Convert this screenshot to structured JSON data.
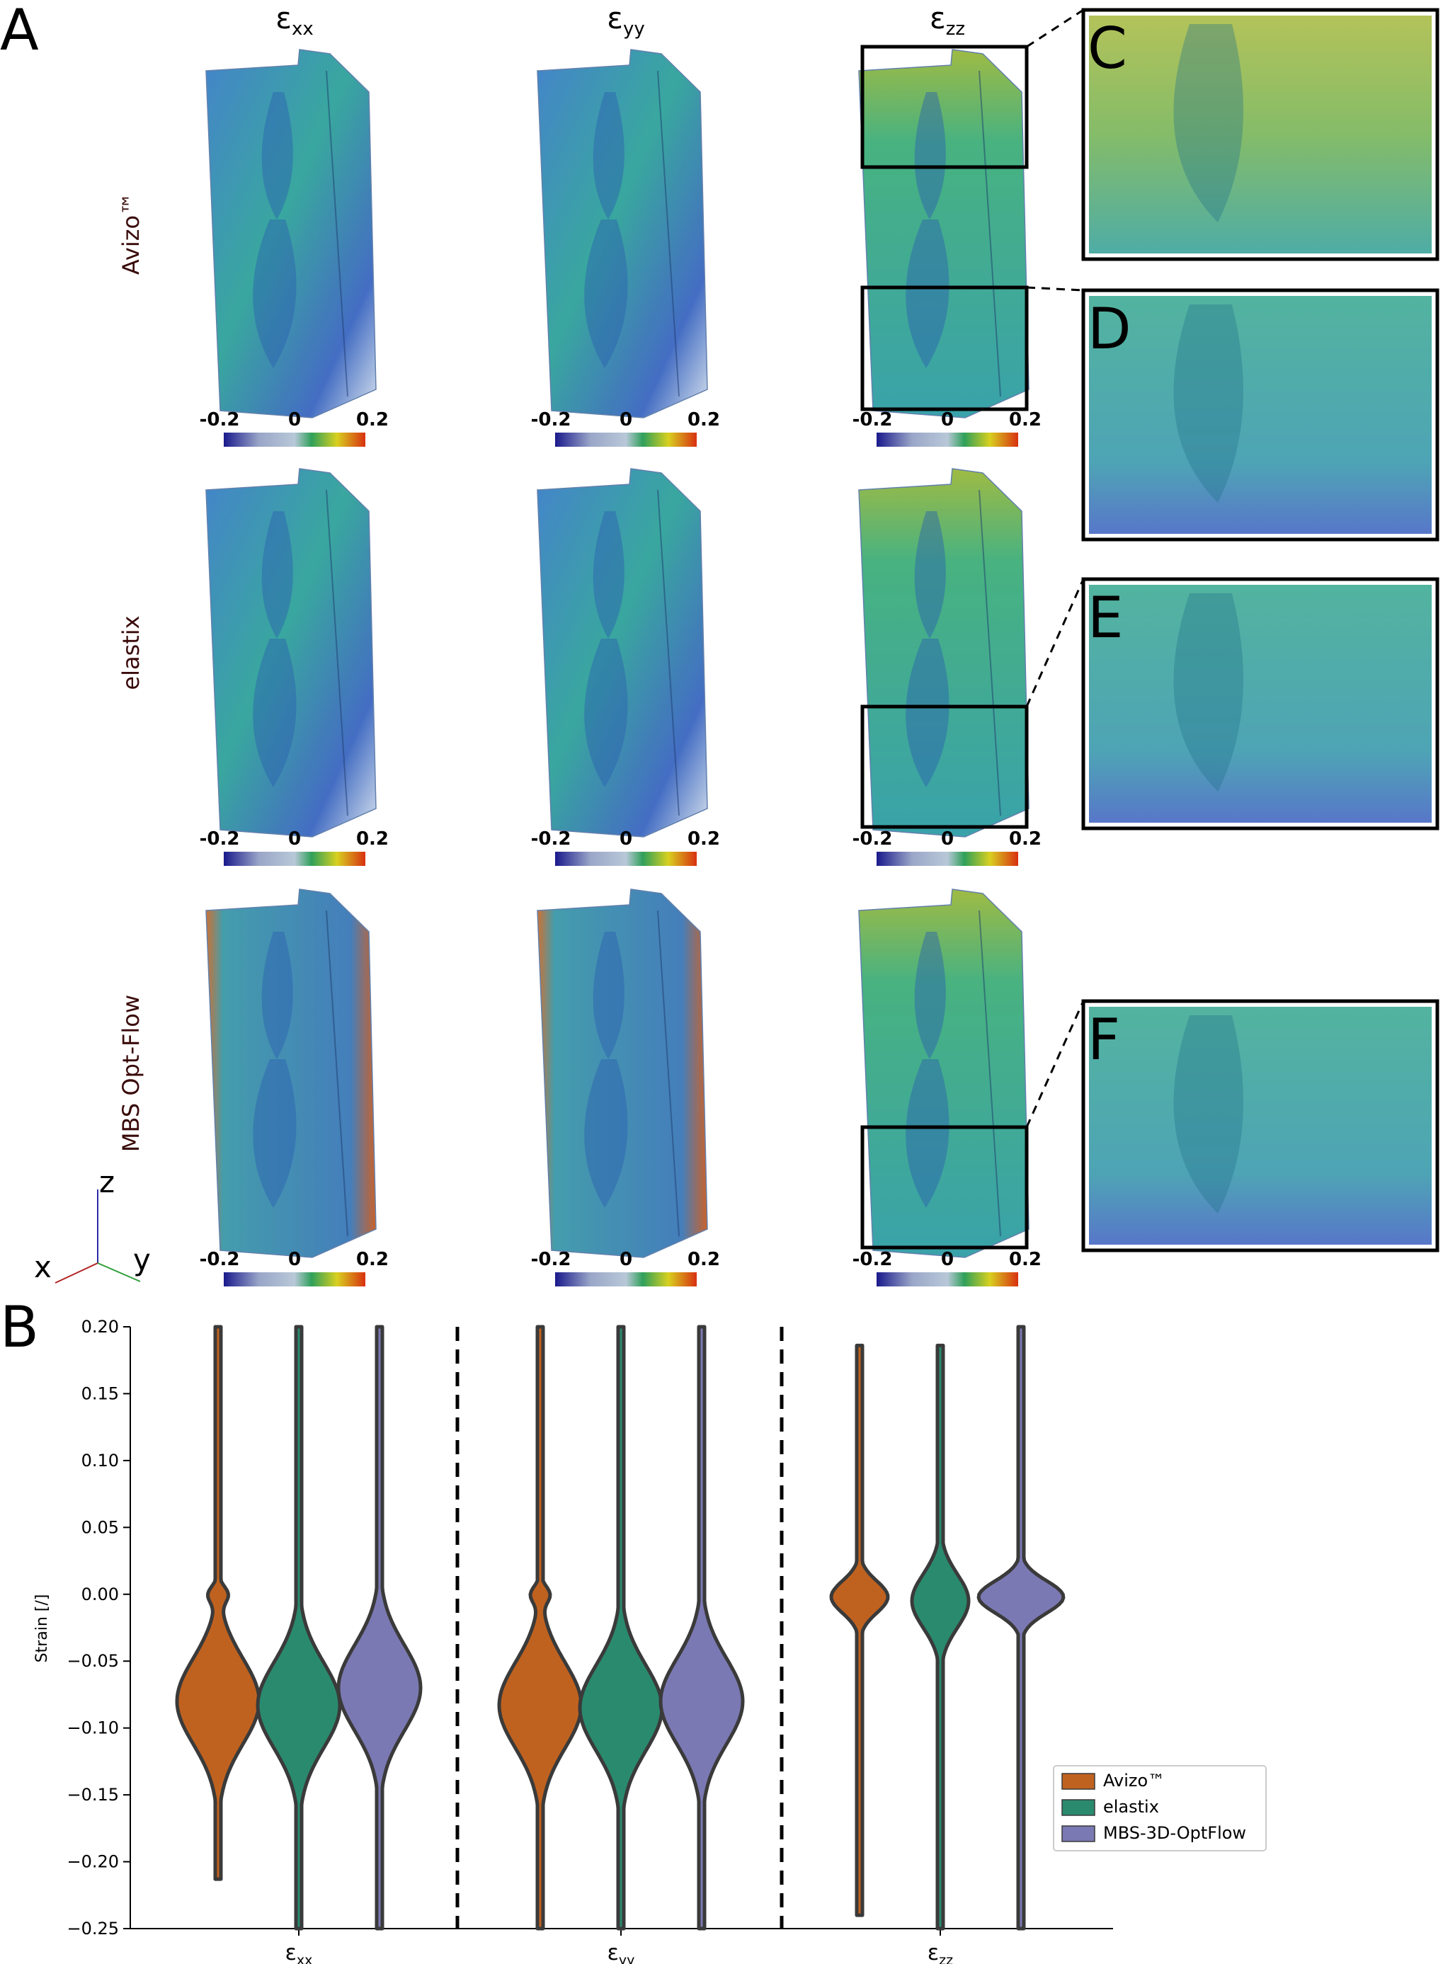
{
  "panel_a": {
    "label": "A",
    "columns": [
      {
        "symbol": "ε",
        "sub": "xx"
      },
      {
        "symbol": "ε",
        "sub": "yy"
      },
      {
        "symbol": "ε",
        "sub": "zz"
      }
    ],
    "rows": [
      "Avizo™",
      "elastix",
      "MBS Opt-Flow"
    ],
    "colorbar": {
      "min": "-0.2",
      "mid": "0",
      "max": "0.2"
    },
    "axes_triad": {
      "x": "x",
      "y": "y",
      "z": "z"
    }
  },
  "insets": [
    "C",
    "D",
    "E",
    "F"
  ],
  "colors": {
    "avizo": "#c0621f",
    "elastix": "#2a8a6e",
    "mbs": "#7b79b3",
    "outline": "#3a3a3a",
    "volume_base": "#2f9e9a",
    "volume_cool": "#3c5fbf",
    "volume_warm": "#e0a030"
  },
  "chart_data": {
    "type": "violin",
    "panel_label": "B",
    "title": "",
    "xlabel": "",
    "ylabel": "Strain [/]",
    "ylim": [
      -0.25,
      0.2
    ],
    "yticks": [
      "0.20",
      "0.15",
      "0.10",
      "0.05",
      "0.00",
      "−0.05",
      "−0.10",
      "−0.15",
      "−0.20",
      "−0.25"
    ],
    "categories": [
      {
        "symbol": "ε",
        "sub": "xx"
      },
      {
        "symbol": "ε",
        "sub": "yy"
      },
      {
        "symbol": "ε",
        "sub": "zz"
      }
    ],
    "legend": {
      "placement": "lower-right",
      "entries": [
        "Avizo™",
        "elastix",
        "MBS-3D-OptFlow"
      ]
    },
    "series": [
      {
        "name": "Avizo™",
        "color": "#c0621f",
        "violins": [
          {
            "category": "εxx",
            "min": -0.213,
            "max": 0.2,
            "median": -0.083,
            "peak": -0.08
          },
          {
            "category": "εyy",
            "min": -0.25,
            "max": 0.2,
            "median": -0.08,
            "peak": -0.083
          },
          {
            "category": "εzz",
            "min": -0.24,
            "max": 0.186,
            "median": -0.005,
            "peak": -0.002
          }
        ]
      },
      {
        "name": "elastix",
        "color": "#2a8a6e",
        "violins": [
          {
            "category": "εxx",
            "min": -0.25,
            "max": 0.2,
            "median": -0.083,
            "peak": -0.083
          },
          {
            "category": "εyy",
            "min": -0.25,
            "max": 0.2,
            "median": -0.085,
            "peak": -0.085
          },
          {
            "category": "εzz",
            "min": -0.25,
            "max": 0.186,
            "median": -0.005,
            "peak": -0.005
          }
        ]
      },
      {
        "name": "MBS-3D-OptFlow",
        "color": "#7b79b3",
        "violins": [
          {
            "category": "εxx",
            "min": -0.25,
            "max": 0.2,
            "median": -0.07,
            "peak": -0.07
          },
          {
            "category": "εyy",
            "min": -0.25,
            "max": 0.2,
            "median": -0.08,
            "peak": -0.08
          },
          {
            "category": "εzz",
            "min": -0.25,
            "max": 0.2,
            "median": -0.002,
            "peak": -0.002
          }
        ]
      }
    ]
  }
}
